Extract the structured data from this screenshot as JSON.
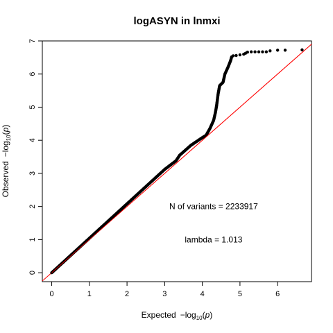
{
  "chart_data": {
    "type": "scatter",
    "title": "logASYN in lnmxi",
    "xlabel": {
      "prefix": "Expected",
      "func": "log",
      "sub": "10",
      "arg": "p"
    },
    "ylabel": {
      "prefix": "Observed",
      "func": "log",
      "sub": "10",
      "arg": "p"
    },
    "xlim": [
      -0.25,
      6.9
    ],
    "ylim": [
      -0.27,
      7.0
    ],
    "xticks": [
      0,
      1,
      2,
      3,
      4,
      5,
      6
    ],
    "yticks": [
      0,
      1,
      2,
      3,
      4,
      5,
      6,
      7
    ],
    "reference_line": {
      "color": "#ff0000",
      "slope": 1,
      "intercept": 0
    },
    "point_color": "#000000",
    "points_dense": [
      [
        0.0,
        0.0
      ],
      [
        0.5,
        0.52
      ],
      [
        1.0,
        1.04
      ],
      [
        1.5,
        1.56
      ],
      [
        2.0,
        2.08
      ],
      [
        2.5,
        2.6
      ],
      [
        3.0,
        3.12
      ],
      [
        3.3,
        3.38
      ],
      [
        3.4,
        3.55
      ],
      [
        3.7,
        3.85
      ],
      [
        4.0,
        4.08
      ],
      [
        4.1,
        4.15
      ],
      [
        4.2,
        4.35
      ],
      [
        4.3,
        4.6
      ],
      [
        4.35,
        4.85
      ],
      [
        4.38,
        5.05
      ],
      [
        4.42,
        5.4
      ],
      [
        4.46,
        5.65
      ],
      [
        4.55,
        5.75
      ],
      [
        4.6,
        6.0
      ],
      [
        4.68,
        6.2
      ],
      [
        4.75,
        6.4
      ],
      [
        4.78,
        6.52
      ]
    ],
    "points_sparse": [
      [
        4.82,
        6.55
      ],
      [
        4.9,
        6.56
      ],
      [
        5.0,
        6.58
      ],
      [
        5.1,
        6.6
      ],
      [
        5.15,
        6.63
      ],
      [
        5.2,
        6.66
      ],
      [
        5.3,
        6.67
      ],
      [
        5.4,
        6.67
      ],
      [
        5.5,
        6.67
      ],
      [
        5.6,
        6.67
      ],
      [
        5.7,
        6.67
      ],
      [
        5.8,
        6.7
      ],
      [
        6.0,
        6.72
      ],
      [
        6.2,
        6.72
      ],
      [
        6.65,
        6.73
      ]
    ],
    "annotations": [
      {
        "text": "N of variants = 2233917",
        "x": 4.3,
        "y": 2.0
      },
      {
        "text": "lambda = 1.013",
        "x": 4.3,
        "y": 1.0
      }
    ]
  }
}
